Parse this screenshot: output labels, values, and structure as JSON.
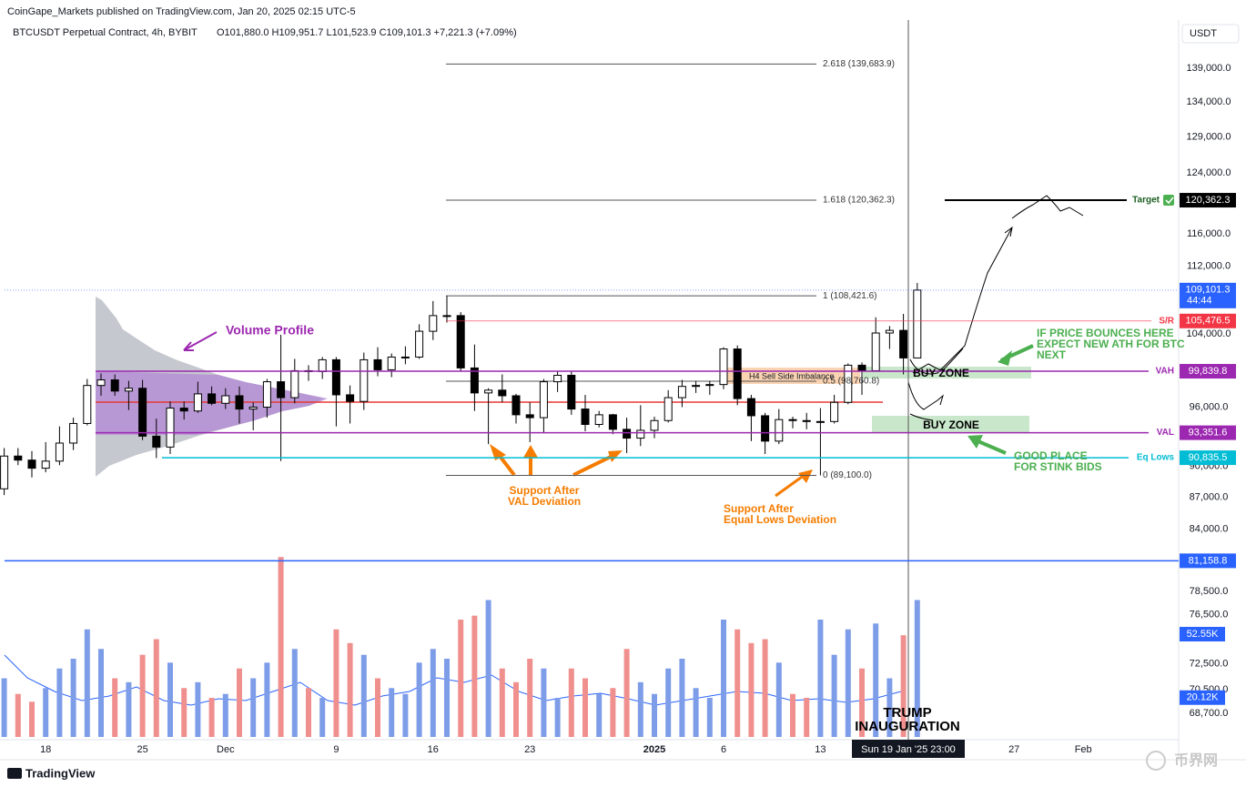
{
  "header": {
    "published": "CoinGape_Markets published on TradingView.com, Jan 20, 2025 02:15 UTC-5",
    "symbol": "BTCUSDT Perpetual Contract, 4h, BYBIT",
    "ohlc": "O101,880.0 H109,951.7 L101,523.9 C109,101.3 +7,221.3 (+7.09%)",
    "currency": "USDT"
  },
  "footer": {
    "brand": "TradingView",
    "watermark": "币界网"
  },
  "chart_data": {
    "type": "candlestick",
    "log_scale": true,
    "categories": [
      null,
      null,
      null,
      "18",
      null,
      null,
      null,
      null,
      null,
      null,
      "25",
      null,
      null,
      null,
      null,
      null,
      "Dec",
      null,
      null,
      null,
      null,
      null,
      null,
      null,
      "9",
      null,
      null,
      null,
      null,
      null,
      null,
      "16",
      null,
      null,
      null,
      null,
      null,
      null,
      "23",
      null,
      null,
      null,
      null,
      null,
      null,
      null,
      null,
      "2025",
      null,
      null,
      null,
      null,
      "6",
      null,
      null,
      null,
      null,
      null,
      null,
      "13",
      null,
      null,
      null,
      null,
      null,
      null,
      null,
      null,
      null,
      null,
      null,
      null,
      null,
      "27",
      null,
      null,
      null,
      null,
      "Feb",
      null,
      null,
      null,
      null,
      null,
      null
    ],
    "open": [
      87800,
      91000,
      90600,
      89800,
      90500,
      92300,
      94300,
      98300,
      98900,
      97700,
      98000,
      93000,
      91900,
      95900,
      95600,
      97400,
      96400,
      97200,
      95800,
      96000,
      98700,
      97000,
      99900,
      99800,
      101100,
      97300,
      96600,
      101100,
      100000,
      101400,
      101400,
      104300,
      106100,
      106100,
      100200,
      97500,
      97800,
      97200,
      95200,
      94900,
      98700,
      99400,
      95800,
      94200,
      95200,
      93700,
      92800,
      93600,
      94600,
      97000,
      98200,
      98300,
      98400,
      102300,
      96900,
      95100,
      92500,
      94700,
      94600,
      94500,
      94500,
      96500,
      100500,
      99900,
      104100,
      104400,
      101300,
      null,
      null,
      null,
      null,
      null,
      null,
      null,
      null,
      null,
      null,
      null,
      null,
      null,
      null,
      null,
      null,
      null,
      null
    ],
    "high": [
      91800,
      91800,
      91500,
      92400,
      94000,
      94900,
      99000,
      99600,
      99500,
      98800,
      98900,
      94800,
      96600,
      96600,
      98700,
      98200,
      98000,
      98200,
      96500,
      99000,
      103900,
      101200,
      100500,
      101400,
      101400,
      98300,
      101900,
      102500,
      101800,
      102600,
      105100,
      107800,
      108400,
      106500,
      102800,
      98000,
      99500,
      97400,
      96500,
      99000,
      99900,
      99900,
      97300,
      95600,
      95300,
      94900,
      96200,
      95000,
      97800,
      98900,
      98800,
      98800,
      102500,
      102700,
      97300,
      95400,
      95800,
      95000,
      95400,
      95900,
      97300,
      100700,
      100800,
      105900,
      104900,
      106300,
      109950,
      null,
      null,
      null,
      null,
      null,
      null,
      null,
      null,
      null,
      null,
      null,
      null,
      null,
      null,
      null,
      null,
      null,
      null
    ],
    "low": [
      87200,
      90100,
      88900,
      89400,
      90100,
      91600,
      94100,
      97200,
      97200,
      95700,
      92600,
      90800,
      91200,
      94700,
      95400,
      96200,
      95800,
      94300,
      93600,
      94900,
      90500,
      96400,
      98800,
      99000,
      94000,
      94300,
      95700,
      99300,
      99200,
      100600,
      101200,
      103300,
      105300,
      99800,
      95600,
      92200,
      96500,
      94300,
      92400,
      93400,
      97600,
      95200,
      93500,
      93900,
      93200,
      91300,
      92000,
      92800,
      94400,
      96000,
      97500,
      97300,
      97900,
      96200,
      92500,
      91200,
      92200,
      93800,
      93700,
      89100,
      94300,
      96300,
      97300,
      99900,
      102300,
      99500,
      101300,
      null,
      null,
      null,
      null,
      null,
      null,
      null,
      null,
      null,
      null,
      null,
      null,
      null,
      null,
      null,
      null,
      null,
      null
    ],
    "close": [
      91000,
      90600,
      89800,
      90500,
      92300,
      94300,
      98300,
      98900,
      97700,
      98000,
      93000,
      91900,
      95900,
      95600,
      97400,
      96400,
      97200,
      95800,
      96000,
      98700,
      97000,
      99900,
      99800,
      101100,
      97300,
      96600,
      101100,
      100000,
      101400,
      101400,
      104300,
      106100,
      106100,
      100200,
      97500,
      97800,
      97200,
      95200,
      94900,
      98700,
      99400,
      95800,
      94200,
      95200,
      93700,
      92800,
      93600,
      94600,
      97000,
      98200,
      98300,
      98400,
      102300,
      96900,
      95100,
      92500,
      94700,
      94600,
      94500,
      94500,
      96500,
      100500,
      99900,
      104100,
      104400,
      101300,
      109100,
      null,
      null,
      null,
      null,
      null,
      null,
      null,
      null,
      null,
      null,
      null,
      null,
      null,
      null,
      null,
      null,
      null,
      null
    ],
    "up_color": "#ffffff",
    "down_color": "#000000",
    "ylim": [
      65300,
      145400
    ],
    "yticks": [
      {
        "value": 139000,
        "label": "139,000.0"
      },
      {
        "value": 134000,
        "label": "134,000.0"
      },
      {
        "value": 129000,
        "label": "129,000.0"
      },
      {
        "value": 124000,
        "label": "124,000.0"
      },
      {
        "value": 116000,
        "label": "116,000.0"
      },
      {
        "value": 112000,
        "label": "112,000.0"
      },
      {
        "value": 104000,
        "label": "104,000.0"
      },
      {
        "value": 96000,
        "label": "96,000.0"
      },
      {
        "value": 90000,
        "label": "90,000.0"
      },
      {
        "value": 87000,
        "label": "87,000.0"
      },
      {
        "value": 84000,
        "label": "84,000.0"
      },
      {
        "value": 78500,
        "label": "78,500.0"
      },
      {
        "value": 76500,
        "label": "76,500.0"
      },
      {
        "value": 72500,
        "label": "72,500.0"
      },
      {
        "value": 70500,
        "label": "70,500.0"
      },
      {
        "value": 68700,
        "label": "68,700.0"
      }
    ],
    "crosshair_label": "Sun 19 Jan '25  23:00",
    "last_price": {
      "value": 109101.3,
      "label": "109,101.3",
      "countdown": "44:44",
      "color": "#2962ff"
    },
    "levels": [
      {
        "name": "Target",
        "value": 120362.3,
        "label": "120,362.3",
        "color": "#000000"
      },
      {
        "name": "S/R",
        "value": 105476.5,
        "label": "105,476.5",
        "color": "#f23645"
      },
      {
        "name": "VAH",
        "value": 99839.8,
        "label": "99,839.8",
        "color": "#9c27b0"
      },
      {
        "name": "VAL",
        "value": 93351.6,
        "label": "93,351.6",
        "color": "#9c27b0"
      },
      {
        "name": "Eq Lows",
        "value": 90835.5,
        "label": "90,835.5",
        "color": "#00bcd4"
      },
      {
        "value": 81158.8,
        "label": "81,158.8",
        "color": "#2962ff"
      }
    ],
    "fib": [
      {
        "label": "2.618 (139,683.9)",
        "value": 139683.9
      },
      {
        "label": "1.618 (120,362.3)",
        "value": 120362.3
      },
      {
        "label": "1 (108,421.6)",
        "value": 108421.6
      },
      {
        "label": "0.5 (98,760.8)",
        "value": 98760.8
      },
      {
        "label": "0 (89,100.0)",
        "value": 89100.0
      }
    ],
    "volume": {
      "values": [
        30,
        22,
        18,
        25,
        35,
        40,
        55,
        45,
        30,
        28,
        42,
        50,
        38,
        25,
        28,
        20,
        22,
        35,
        30,
        38,
        92,
        45,
        25,
        20,
        55,
        48,
        42,
        30,
        25,
        22,
        38,
        45,
        40,
        60,
        62,
        70,
        35,
        28,
        40,
        35,
        20,
        35,
        30,
        22,
        25,
        45,
        28,
        22,
        35,
        40,
        25,
        20,
        60,
        55,
        48,
        50,
        38,
        22,
        20,
        60,
        42,
        55,
        35,
        58,
        30,
        52,
        70,
        null,
        null,
        null,
        null,
        null,
        null,
        null,
        null,
        null,
        null,
        null,
        null,
        null,
        null,
        null,
        null,
        null,
        null
      ],
      "vlim": [
        0,
        100
      ],
      "up_color": "#7e9de8",
      "down_color": "#f0908e",
      "tags": [
        {
          "value": 52.55,
          "label": "52.55K"
        },
        {
          "value": 20.12,
          "label": "20.12K"
        }
      ]
    },
    "annotations": {
      "volume_profile": "Volume Profile",
      "ath_note": [
        "IF PRICE BOUNCES HERE",
        "EXPECT NEW ATH FOR BTC",
        "NEXT"
      ],
      "stink_bids": [
        "GOOD PLACE",
        "FOR STINK BIDS"
      ],
      "val_support": [
        "Support After",
        "VAL Deviation"
      ],
      "eq_support": [
        "Support After",
        "Equal Lows Deviation"
      ],
      "buy_zones": [
        "BUY ZONE",
        "BUY ZONE"
      ],
      "imbalance": "H4 Sell Side Imbalance",
      "inauguration": [
        "TRUMP",
        "INAUGURATION"
      ]
    }
  }
}
